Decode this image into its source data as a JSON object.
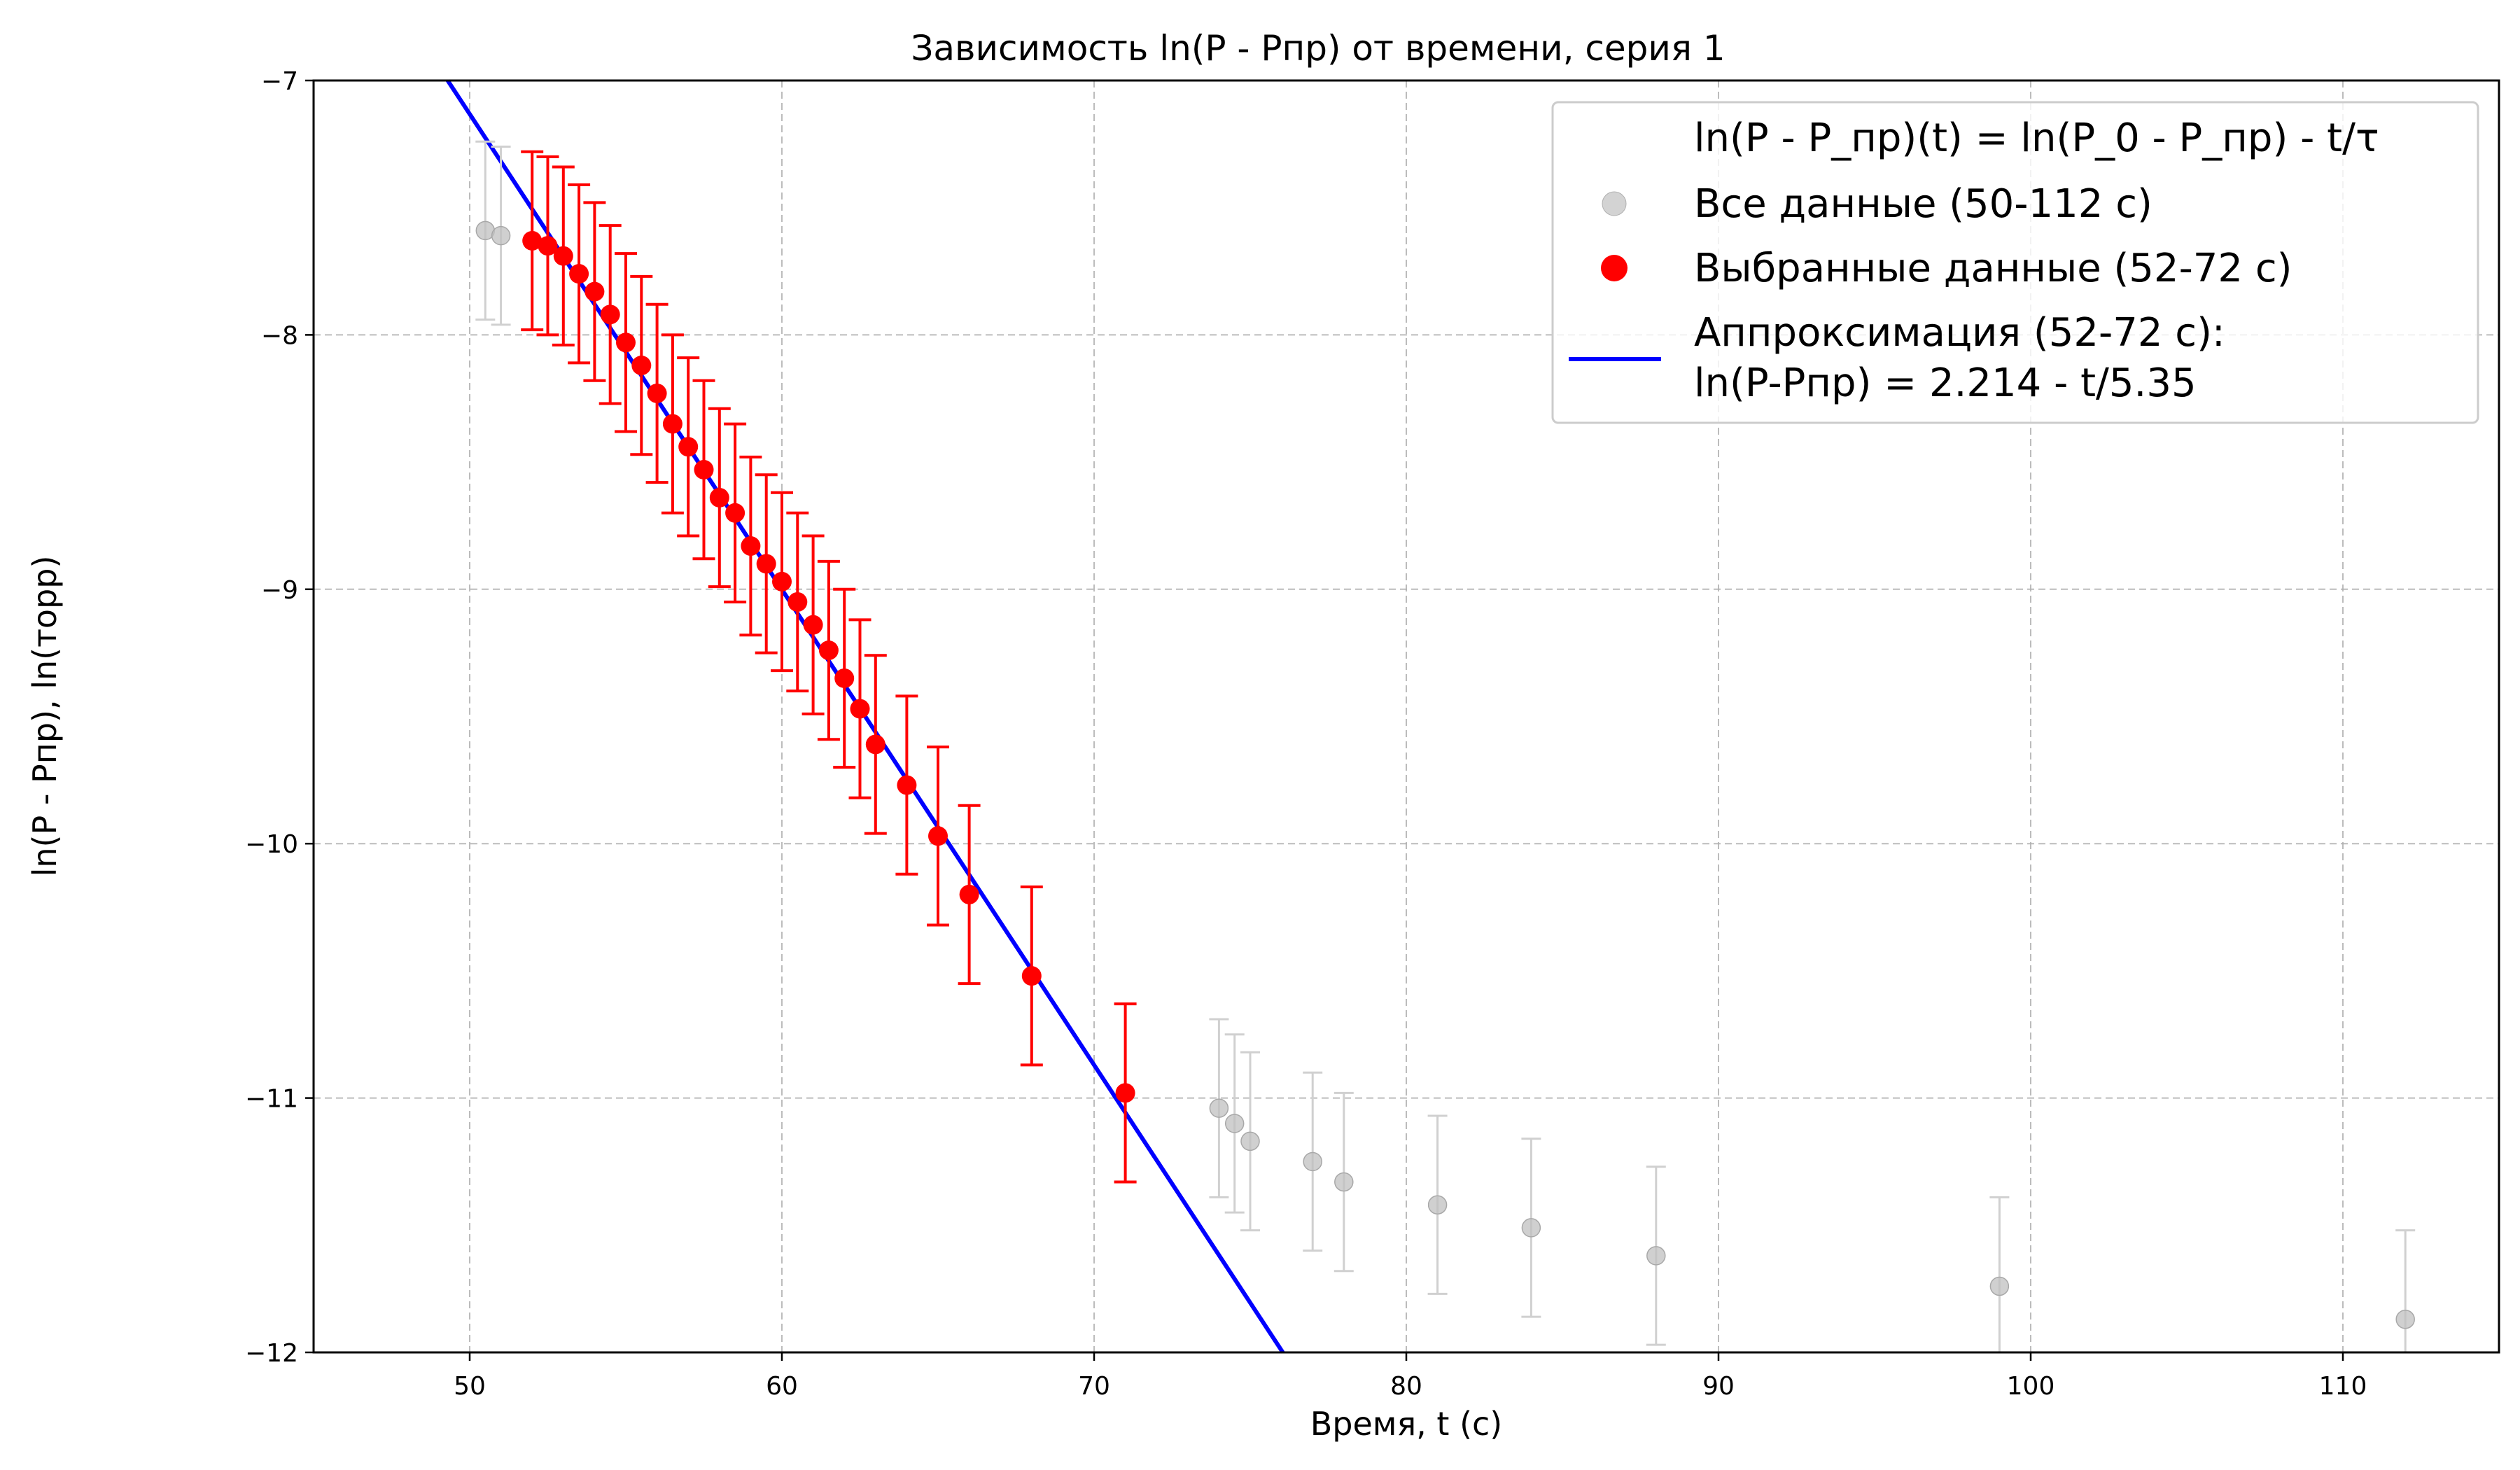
{
  "chart_data": {
    "type": "scatter",
    "title": "Зависимость ln(P - Pпр) от времени, серия 1",
    "xlabel": "Время, t (с)",
    "ylabel": "ln(P - Pпр), ln(торр)",
    "xlim": [
      45,
      115
    ],
    "ylim": [
      -12,
      -7
    ],
    "xticks": [
      50,
      60,
      70,
      80,
      90,
      100,
      110
    ],
    "yticks": [
      -12,
      -11,
      -10,
      -9,
      -8,
      -7
    ],
    "grid": true,
    "legend_position": "top-right",
    "series": [
      {
        "name": "Все данные (50-112 с)",
        "kind": "points",
        "color": "#c8c8c8",
        "error": 0.35,
        "points": [
          [
            50.5,
            -7.59
          ],
          [
            51.0,
            -7.61
          ],
          [
            74.0,
            -11.04
          ],
          [
            74.5,
            -11.1
          ],
          [
            75.0,
            -11.17
          ],
          [
            77.0,
            -11.25
          ],
          [
            78.0,
            -11.33
          ],
          [
            81.0,
            -11.42
          ],
          [
            84.0,
            -11.51
          ],
          [
            88.0,
            -11.62
          ],
          [
            99.0,
            -11.74
          ],
          [
            112.0,
            -11.87
          ]
        ]
      },
      {
        "name": "Выбранные данные (52-72 с)",
        "kind": "points",
        "color": "#ff0000",
        "error": 0.35,
        "points": [
          [
            52.0,
            -7.63
          ],
          [
            52.5,
            -7.65
          ],
          [
            53.0,
            -7.69
          ],
          [
            53.5,
            -7.76
          ],
          [
            54.0,
            -7.83
          ],
          [
            54.5,
            -7.92
          ],
          [
            55.0,
            -8.03
          ],
          [
            55.5,
            -8.12
          ],
          [
            56.0,
            -8.23
          ],
          [
            56.5,
            -8.35
          ],
          [
            57.0,
            -8.44
          ],
          [
            57.5,
            -8.53
          ],
          [
            58.0,
            -8.64
          ],
          [
            58.5,
            -8.7
          ],
          [
            59.0,
            -8.83
          ],
          [
            59.5,
            -8.9
          ],
          [
            60.0,
            -8.97
          ],
          [
            60.5,
            -9.05
          ],
          [
            61.0,
            -9.14
          ],
          [
            61.5,
            -9.24
          ],
          [
            62.0,
            -9.35
          ],
          [
            62.5,
            -9.47
          ],
          [
            63.0,
            -9.61
          ],
          [
            64.0,
            -9.77
          ],
          [
            65.0,
            -9.97
          ],
          [
            66.0,
            -10.2
          ],
          [
            68.0,
            -10.52
          ],
          [
            71.0,
            -10.98
          ]
        ]
      },
      {
        "name": "Аппроксимация (52-72 с):",
        "name_line2": "ln(P-Pпр) = 2.214 - t/5.35",
        "kind": "line",
        "color": "#0000ff",
        "intercept": 2.214,
        "tau": 5.35
      }
    ],
    "legend_header": "ln(P - P_пр)(t) = ln(P_0 - P_пр) - t/τ"
  }
}
